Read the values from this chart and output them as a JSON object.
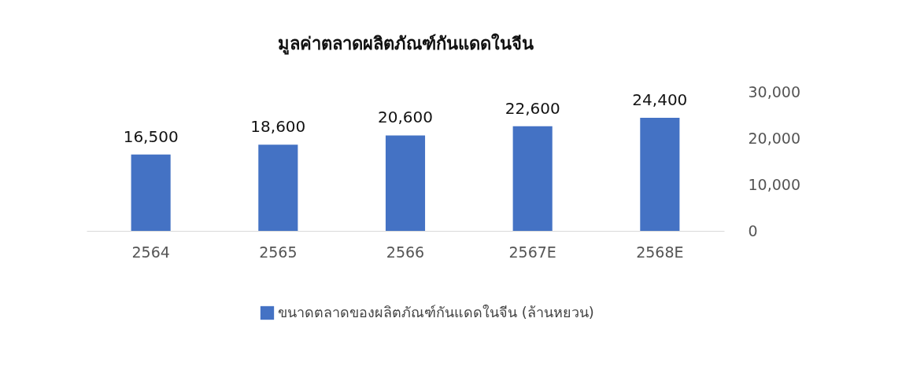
{
  "chart_data": {
    "type": "bar",
    "title": "มูลค่าตลาดผลิตภัณฑ์กันแดดในจีน",
    "categories": [
      "2564",
      "2565",
      "2566",
      "2567E",
      "2568E"
    ],
    "series": [
      {
        "name": "ขนาดตลาดของผลิตภัณฑ์กันแดดในจีน (ล้านหยวน)",
        "color": "#4472c4",
        "values": [
          16500,
          18600,
          20600,
          22600,
          24400
        ],
        "value_labels": [
          "16,500",
          "18,600",
          "20,600",
          "22,600",
          "24,400"
        ]
      }
    ],
    "ylim": [
      0,
      30000
    ],
    "yticks": [
      0,
      {
        "value": 10000,
        "label": "10,000"
      },
      {
        "value": 20000,
        "label": "20,000"
      },
      {
        "value": 30000,
        "label": "30,000"
      }
    ],
    "grid": false,
    "legend": "bottom"
  }
}
